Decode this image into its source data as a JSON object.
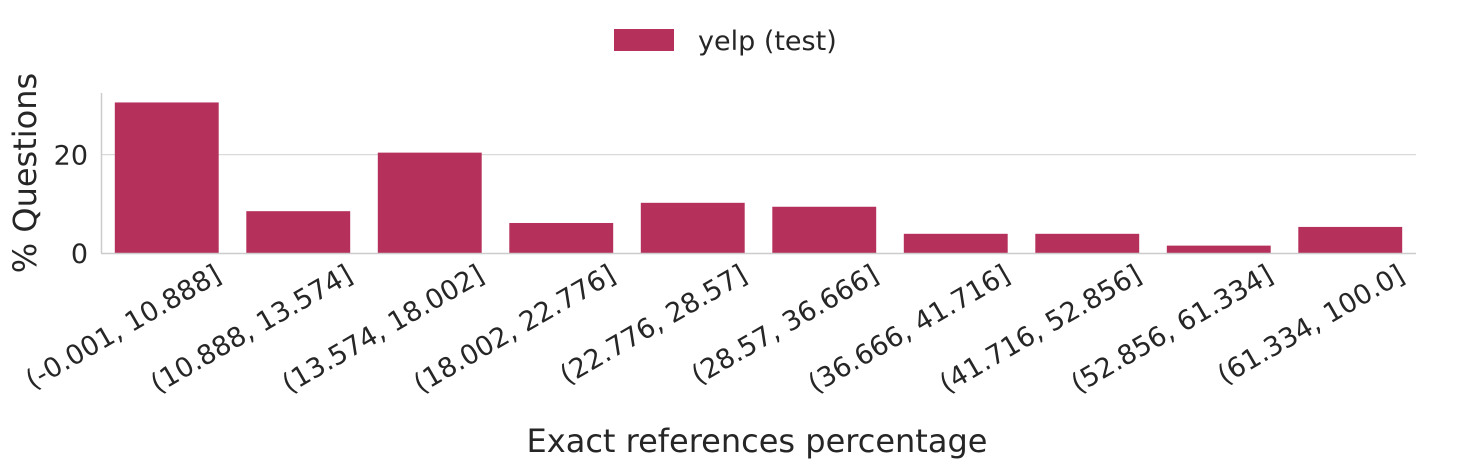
{
  "chart_data": {
    "type": "bar",
    "categories": [
      "(-0.001, 10.888]",
      "(10.888, 13.574]",
      "(13.574, 18.002]",
      "(18.002, 22.776]",
      "(22.776, 28.57]",
      "(28.57, 36.666]",
      "(36.666, 41.716]",
      "(41.716, 52.856]",
      "(52.856, 61.334]",
      "(61.334, 100.0]"
    ],
    "series": [
      {
        "name": "yelp (test)",
        "color": "#b5305a",
        "values": [
          30.6,
          8.5,
          20.4,
          6.1,
          10.2,
          9.4,
          3.9,
          3.9,
          1.5,
          5.3
        ]
      }
    ],
    "xlabel": "Exact references percentage",
    "ylabel": "% Questions",
    "yticks": [
      0,
      20
    ],
    "ylim": [
      0,
      33
    ],
    "grid": "horizontal",
    "legend_position": "top-center"
  }
}
